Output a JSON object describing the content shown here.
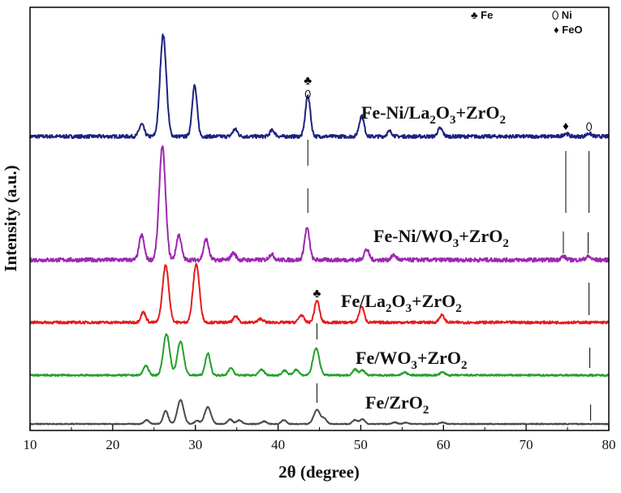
{
  "chart_data": {
    "type": "line",
    "title": "",
    "xlabel": "2θ (degree)",
    "ylabel": "Intensity (a.u.)",
    "xlim": [
      10,
      80
    ],
    "xticks": [
      10,
      20,
      30,
      40,
      50,
      60,
      70,
      80
    ],
    "yticks_shown": false,
    "legend": [
      {
        "symbol": "♣",
        "label": "Fe"
      },
      {
        "symbol": "⬯",
        "label": "Ni"
      },
      {
        "symbol": "♦",
        "label": "FeO"
      }
    ],
    "series": [
      {
        "label_main": "Fe-Ni/La",
        "label_sub1": "2",
        "label_mid": "O",
        "label_sub2": "3",
        "label_tail": "+ZrO",
        "label_sub3": "2",
        "color": "#1a237e",
        "peaks": [
          [
            23.5,
            0.12
          ],
          [
            26.1,
            1.0
          ],
          [
            29.9,
            0.5
          ],
          [
            34.8,
            0.07
          ],
          [
            39.3,
            0.06
          ],
          [
            43.6,
            0.4
          ],
          [
            50.1,
            0.2
          ],
          [
            53.5,
            0.05
          ],
          [
            59.6,
            0.08
          ],
          [
            74.8,
            0.03
          ],
          [
            77.6,
            0.03
          ]
        ]
      },
      {
        "label_main": "Fe-Ni/WO",
        "label_sub1": "3",
        "label_mid": "",
        "label_sub2": "",
        "label_tail": "+ZrO",
        "label_sub3": "2",
        "color": "#9c27b0",
        "peaks": [
          [
            23.5,
            0.22
          ],
          [
            26.0,
            1.0
          ],
          [
            28.0,
            0.22
          ],
          [
            31.3,
            0.18
          ],
          [
            34.6,
            0.06
          ],
          [
            39.2,
            0.05
          ],
          [
            43.5,
            0.28
          ],
          [
            50.7,
            0.09
          ],
          [
            54.0,
            0.04
          ],
          [
            74.5,
            0.03
          ],
          [
            77.5,
            0.03
          ]
        ]
      },
      {
        "label_main": "Fe/La",
        "label_sub1": "2",
        "label_mid": "O",
        "label_sub2": "3",
        "label_tail": "+ZrO",
        "label_sub3": "2",
        "color": "#e51c1c",
        "peaks": [
          [
            23.7,
            0.14
          ],
          [
            26.4,
            0.78
          ],
          [
            30.1,
            0.8
          ],
          [
            34.9,
            0.08
          ],
          [
            37.9,
            0.05
          ],
          [
            42.8,
            0.1
          ],
          [
            44.7,
            0.3
          ],
          [
            50.1,
            0.22
          ],
          [
            59.8,
            0.1
          ]
        ]
      },
      {
        "label_main": "Fe/WO",
        "label_sub1": "3",
        "label_mid": "",
        "label_sub2": "",
        "label_tail": "+ZrO",
        "label_sub3": "2",
        "color": "#23a029",
        "peaks": [
          [
            24.0,
            0.2
          ],
          [
            26.5,
            0.85
          ],
          [
            28.2,
            0.7
          ],
          [
            31.5,
            0.45
          ],
          [
            34.3,
            0.15
          ],
          [
            38.0,
            0.12
          ],
          [
            40.8,
            0.1
          ],
          [
            42.2,
            0.12
          ],
          [
            44.6,
            0.55
          ],
          [
            49.3,
            0.12
          ],
          [
            50.2,
            0.1
          ],
          [
            55.3,
            0.06
          ],
          [
            59.9,
            0.06
          ]
        ]
      },
      {
        "label_main": "Fe/ZrO",
        "label_sub1": "2",
        "label_mid": "",
        "label_sub2": "",
        "label_tail": "",
        "label_sub3": "",
        "color": "#4a4a4a",
        "peaks": [
          [
            24.1,
            0.15
          ],
          [
            26.4,
            0.5
          ],
          [
            28.2,
            0.92
          ],
          [
            30.2,
            0.12
          ],
          [
            31.5,
            0.65
          ],
          [
            34.2,
            0.18
          ],
          [
            35.3,
            0.15
          ],
          [
            38.3,
            0.1
          ],
          [
            40.7,
            0.15
          ],
          [
            44.7,
            0.55
          ],
          [
            45.6,
            0.2
          ],
          [
            49.3,
            0.15
          ],
          [
            50.2,
            0.18
          ],
          [
            54.1,
            0.06
          ],
          [
            55.5,
            0.05
          ],
          [
            59.9,
            0.06
          ]
        ]
      }
    ],
    "annotations": [
      {
        "text": "♣",
        "x": 43.6,
        "series": 0
      },
      {
        "text": "⬯",
        "x": 43.6,
        "series": 0
      },
      {
        "text": "♦",
        "x": 74.8,
        "series": 0
      },
      {
        "text": "⬯",
        "x": 77.6,
        "series": 0
      },
      {
        "text": "♣",
        "x": 44.7,
        "series": 2
      }
    ]
  }
}
